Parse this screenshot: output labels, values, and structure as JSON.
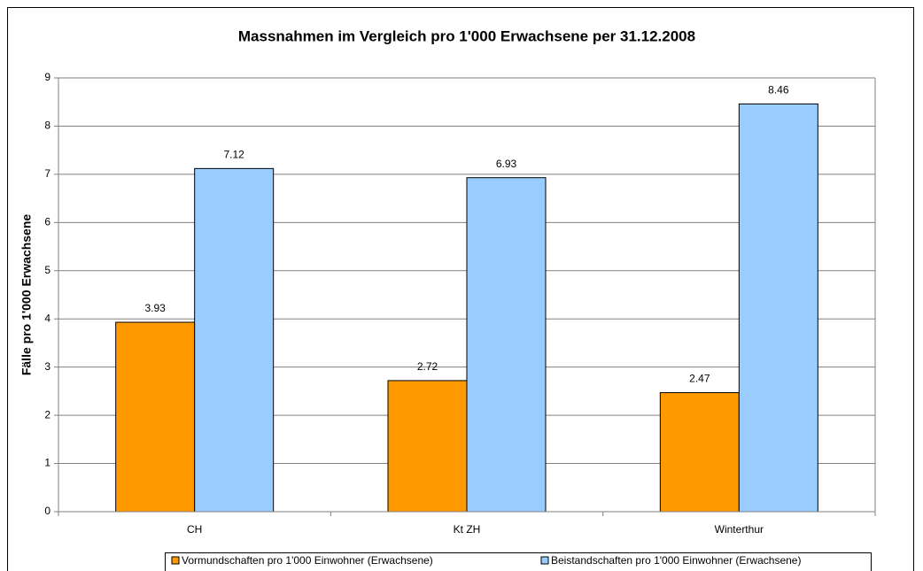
{
  "chart_data": {
    "type": "bar",
    "title": "Massnahmen im Vergleich pro 1'000 Erwachsene per 31.12.2008",
    "ylabel": "Fälle pro 1'000 Erwachsene",
    "categories": [
      "CH",
      "Kt ZH",
      "Winterthur"
    ],
    "series": [
      {
        "name": "Vormundschaften pro 1'000 Einwohner (Erwachsene)",
        "color": "#ff9900",
        "values": [
          3.93,
          2.72,
          2.47
        ]
      },
      {
        "name": "Beistandschaften pro 1'000 Einwohner (Erwachsene)",
        "color": "#99ccff",
        "values": [
          7.12,
          6.93,
          8.46
        ]
      }
    ],
    "ylim": [
      0,
      9
    ],
    "yticks": [
      0,
      1,
      2,
      3,
      4,
      5,
      6,
      7,
      8,
      9
    ],
    "grid": true,
    "legend": "bottom"
  }
}
